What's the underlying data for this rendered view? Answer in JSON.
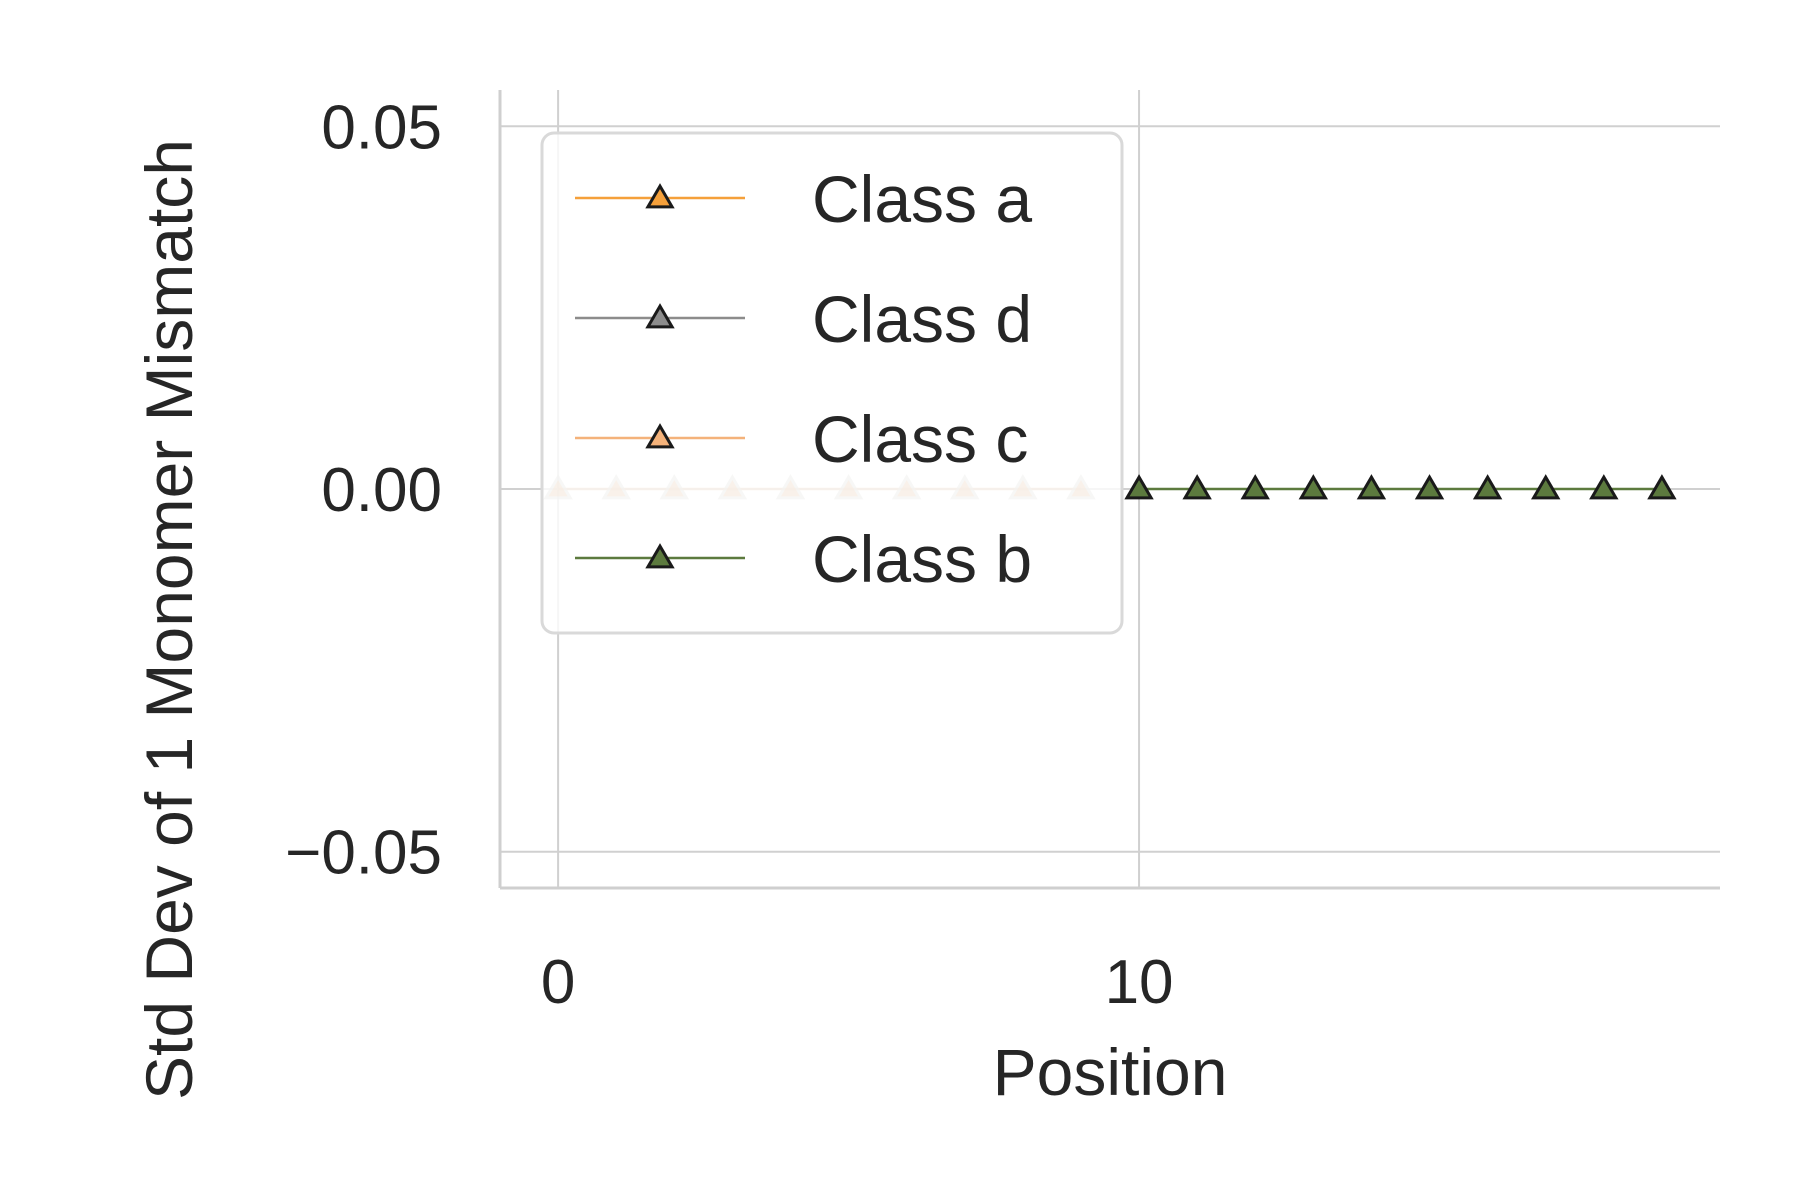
{
  "chart_data": {
    "type": "line",
    "title": "",
    "xlabel": "Position",
    "ylabel": "Std Dev of 1 Monomer Mismatch",
    "xlim": [
      -1,
      20.0
    ],
    "ylim": [
      -0.055,
      0.055
    ],
    "xticks": [
      0,
      10
    ],
    "xtick_labels": [
      "0",
      "10"
    ],
    "yticks": [
      0.05,
      0.0,
      -0.05
    ],
    "ytick_labels": [
      "0.05",
      "0.00",
      "−0.05"
    ],
    "grid": true,
    "legend_position": "upper-left",
    "marker": "triangle",
    "series": [
      {
        "name": "Class a",
        "color": "#f5a03a",
        "x": [
          0,
          1,
          2,
          3,
          4,
          5,
          6,
          7,
          8,
          9
        ],
        "y": [
          0,
          0,
          0,
          0,
          0,
          0,
          0,
          0,
          0,
          0
        ],
        "faded": true
      },
      {
        "name": "Class d",
        "color": "#8c8c8c",
        "x": [
          0,
          1,
          2,
          3,
          4,
          5,
          6,
          7,
          8,
          9
        ],
        "y": [
          0,
          0,
          0,
          0,
          0,
          0,
          0,
          0,
          0,
          0
        ],
        "faded": true
      },
      {
        "name": "Class c",
        "color": "#f4b27a",
        "x": [
          0,
          1,
          2,
          3,
          4,
          5,
          6,
          7,
          8,
          9
        ],
        "y": [
          0,
          0,
          0,
          0,
          0,
          0,
          0,
          0,
          0,
          0
        ],
        "faded": true
      },
      {
        "name": "Class b",
        "color": "#5c7a3e",
        "x": [
          10,
          11,
          12,
          13,
          14,
          15,
          16,
          17,
          18,
          19
        ],
        "y": [
          0,
          0,
          0,
          0,
          0,
          0,
          0,
          0,
          0,
          0
        ],
        "faded": false
      }
    ]
  }
}
